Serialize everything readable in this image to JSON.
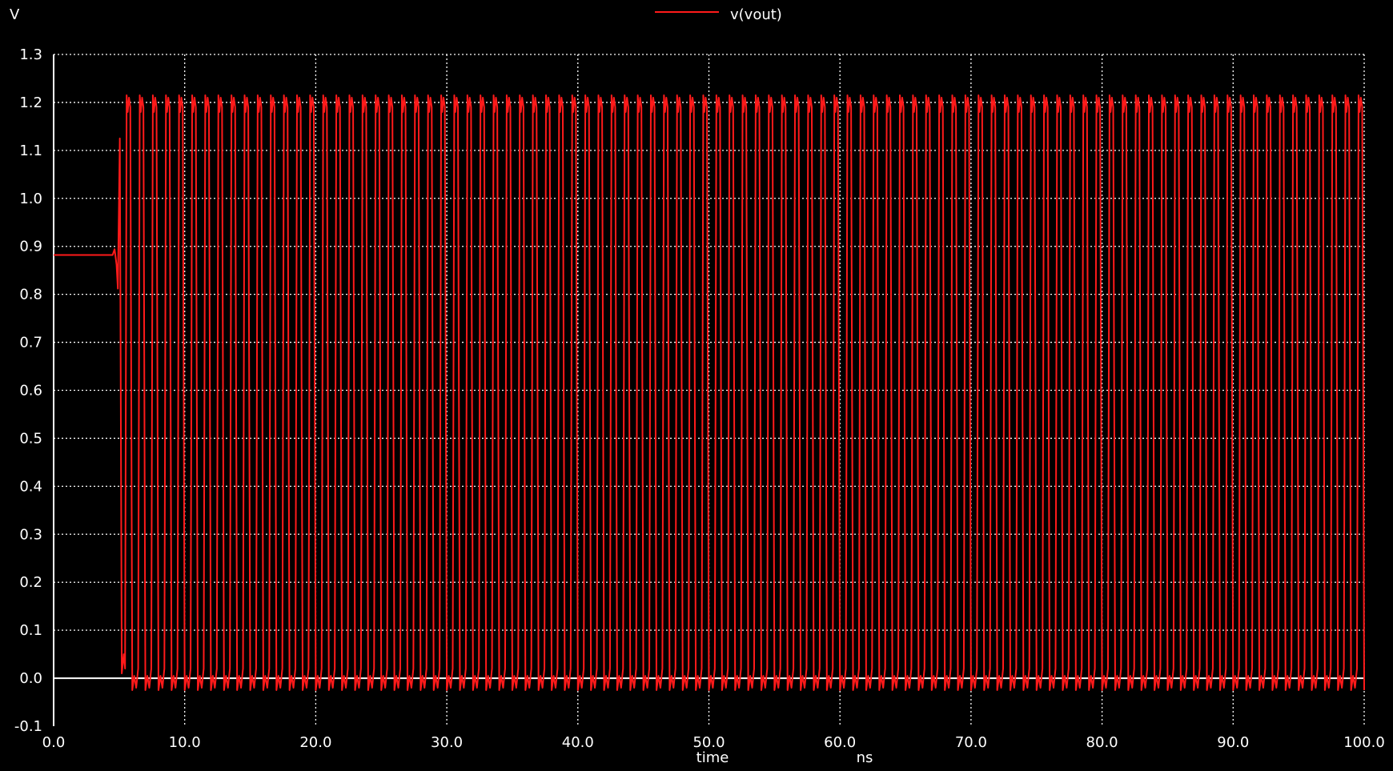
{
  "chart_data": {
    "type": "line",
    "ylabel": "V",
    "xlabel": "time",
    "xunit": "ns",
    "xlim": [
      0,
      100
    ],
    "ylim": [
      -0.1,
      1.3
    ],
    "grid": true,
    "legend_position": "top-center",
    "x_ticks": [
      "0.0",
      "10.0",
      "20.0",
      "30.0",
      "40.0",
      "50.0",
      "60.0",
      "70.0",
      "80.0",
      "90.0",
      "100.0"
    ],
    "y_ticks": [
      "-0.1",
      "0.0",
      "0.1",
      "0.2",
      "0.3",
      "0.4",
      "0.5",
      "0.6",
      "0.7",
      "0.8",
      "0.9",
      "1.0",
      "1.1",
      "1.2",
      "1.3"
    ],
    "series": [
      {
        "name": "v(vout)",
        "color": "#ff1a1a",
        "initial_level": 0.882,
        "oscillation_start": 4.9,
        "period": 1.0,
        "high": 1.2,
        "low": 0.0,
        "overshoot_high": 1.215,
        "undershoot_low": -0.025
      }
    ]
  }
}
